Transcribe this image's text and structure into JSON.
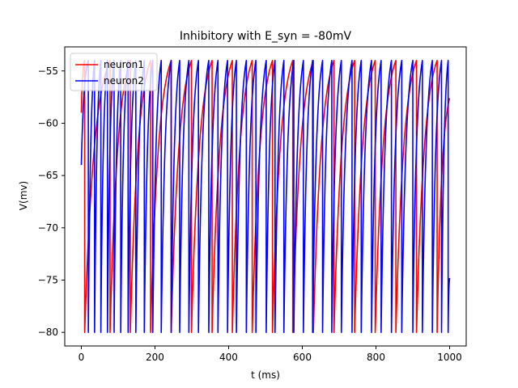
{
  "chart_data": {
    "type": "line",
    "title": "Inhibitory with E_syn = -80mV",
    "xlabel": "t (ms)",
    "ylabel": "V(mv)",
    "xlim": [
      -45,
      1045
    ],
    "ylim": [
      -81.3,
      -52.7
    ],
    "xticks": [
      0,
      200,
      400,
      600,
      800,
      1000
    ],
    "yticks": [
      -80,
      -75,
      -70,
      -65,
      -60,
      -55
    ],
    "grid": false,
    "legend": {
      "position": "top-left"
    },
    "v_reset": -80,
    "v_threshold": -54,
    "series": [
      {
        "name": "neuron1",
        "color": "#ff0000",
        "v_start": -59,
        "v_end": -57.6,
        "spike_times": [
          9,
          78,
          133,
          188,
          244,
          299,
          355,
          410,
          464,
          519,
          574,
          630,
          686,
          742,
          798,
          854,
          910,
          966
        ]
      },
      {
        "name": "neuron2",
        "color": "#0000ff",
        "v_start": -64,
        "v_end": -74.8,
        "spike_times": [
          19,
          36,
          53,
          71,
          89,
          107,
          127,
          148,
          171,
          194,
          217,
          244,
          267,
          292,
          318,
          346,
          371,
          397,
          421,
          448,
          474,
          502,
          526,
          550,
          577,
          603,
          628,
          655,
          680,
          706,
          735,
          760,
          788,
          814,
          842,
          870,
          900,
          926,
          953,
          978,
          996
        ]
      }
    ]
  }
}
